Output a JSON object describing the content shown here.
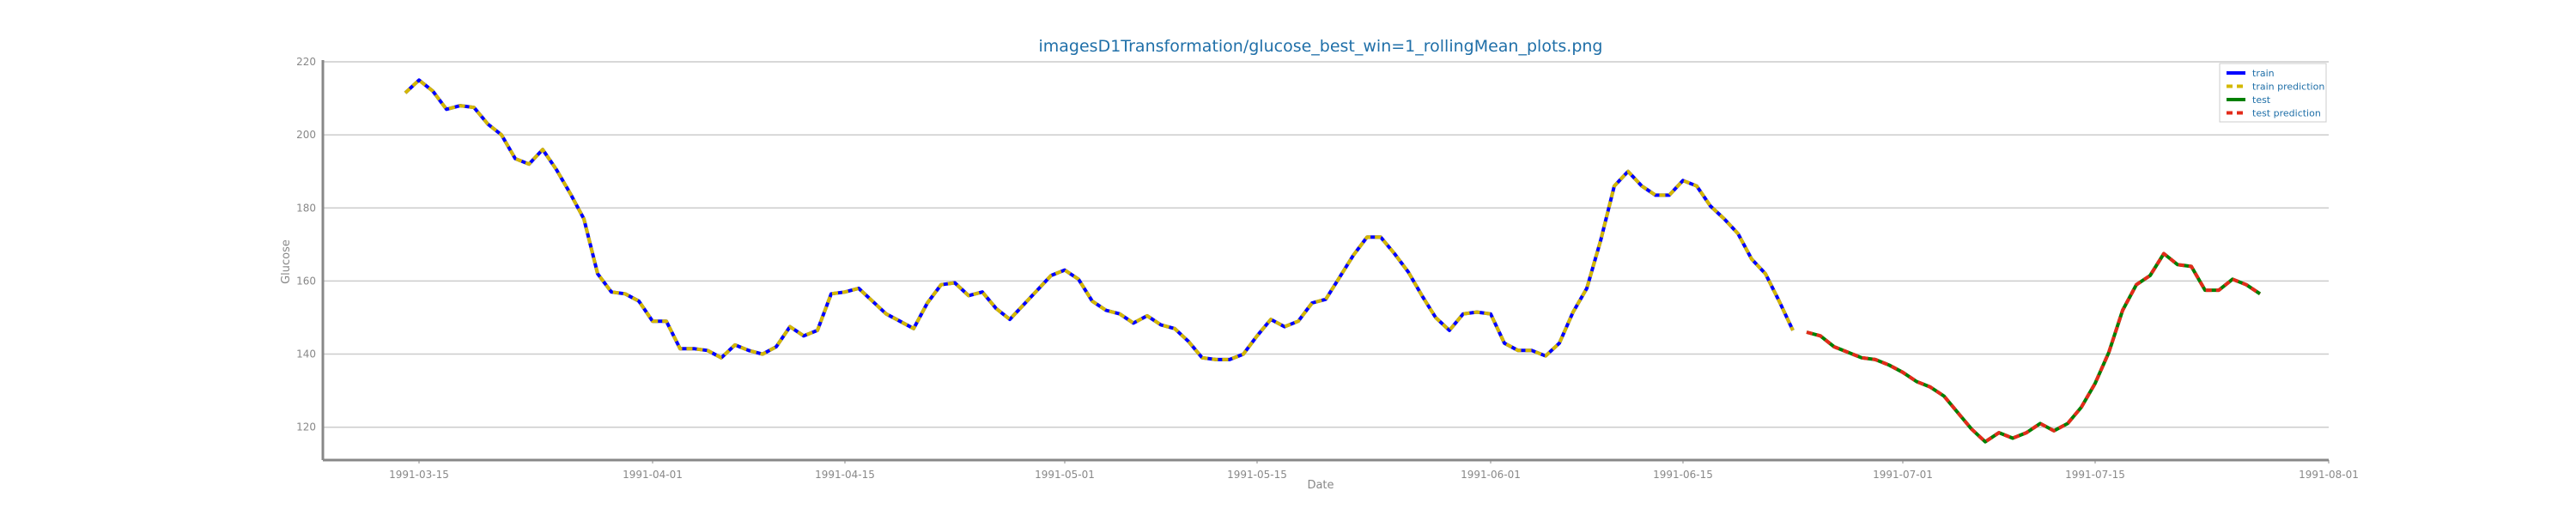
{
  "chart_data": {
    "type": "line",
    "title": "imagesD1Transformation/glucose_best_win=1_rollingMean_plots.png",
    "xlabel": "Date",
    "ylabel": "Glucose",
    "xlim": [
      "1991-03-08",
      "1991-08-01"
    ],
    "ylim": [
      111,
      220
    ],
    "x_ticks": [
      "1991-03-15",
      "1991-04-01",
      "1991-04-15",
      "1991-05-01",
      "1991-05-15",
      "1991-06-01",
      "1991-06-15",
      "1991-07-01",
      "1991-07-15",
      "1991-08-01"
    ],
    "y_ticks": [
      120,
      140,
      160,
      180,
      200,
      220
    ],
    "grid": "horizontal",
    "legend_position": "top-right",
    "series": [
      {
        "name": "train",
        "color": "#0000ff",
        "style": "solid",
        "x_start": "1991-03-14",
        "step_days": 1,
        "values": [
          211.5,
          215.0,
          212.0,
          207.0,
          208.0,
          207.5,
          203.0,
          200.0,
          193.5,
          192.0,
          196.0,
          190.5,
          184.0,
          177.0,
          162.0,
          157.0,
          156.5,
          154.5,
          149.0,
          149.0,
          141.5,
          141.5,
          141.0,
          139.0,
          142.5,
          141.0,
          140.0,
          142.0,
          147.5,
          145.0,
          146.5,
          156.5,
          157.0,
          158.0,
          154.5,
          151.0,
          149.0,
          147.0,
          154.0,
          159.0,
          159.5,
          156.0,
          157.0,
          152.5,
          149.5,
          153.5,
          157.5,
          161.5,
          163.0,
          160.5,
          154.5,
          152.0,
          151.0,
          148.5,
          150.5,
          148.0,
          147.0,
          143.5,
          139.0,
          138.5,
          138.5,
          140.0,
          145.0,
          149.5,
          147.5,
          149.0,
          154.0,
          155.0,
          161.0,
          167.0,
          172.0,
          172.0,
          167.5,
          162.5,
          156.0,
          150.0,
          146.5,
          151.0,
          151.5,
          151.0,
          143.0,
          141.0,
          141.0,
          139.5,
          143.0,
          151.5,
          158.0,
          171.0,
          186.0,
          190.0,
          186.0,
          183.5,
          183.5,
          187.5,
          186.0,
          180.5,
          177.0,
          173.0,
          166.0,
          162.0,
          154.5,
          146.5
        ]
      },
      {
        "name": "train prediction",
        "color": "#d4b800",
        "style": "dashed",
        "x_start": "1991-03-14",
        "step_days": 1,
        "values": [
          211.5,
          215.0,
          212.0,
          207.0,
          208.0,
          207.5,
          203.0,
          200.0,
          193.5,
          192.0,
          196.0,
          190.5,
          184.0,
          177.0,
          162.0,
          157.0,
          156.5,
          154.5,
          149.0,
          149.0,
          141.5,
          141.5,
          141.0,
          139.0,
          142.5,
          141.0,
          140.0,
          142.0,
          147.5,
          145.0,
          146.5,
          156.5,
          157.0,
          158.0,
          154.5,
          151.0,
          149.0,
          147.0,
          154.0,
          159.0,
          159.5,
          156.0,
          157.0,
          152.5,
          149.5,
          153.5,
          157.5,
          161.5,
          163.0,
          160.5,
          154.5,
          152.0,
          151.0,
          148.5,
          150.5,
          148.0,
          147.0,
          143.5,
          139.0,
          138.5,
          138.5,
          140.0,
          145.0,
          149.5,
          147.5,
          149.0,
          154.0,
          155.0,
          161.0,
          167.0,
          172.0,
          172.0,
          167.5,
          162.5,
          156.0,
          150.0,
          146.5,
          151.0,
          151.5,
          151.0,
          143.0,
          141.0,
          141.0,
          139.5,
          143.0,
          151.5,
          158.0,
          171.0,
          186.0,
          190.0,
          186.0,
          183.5,
          183.5,
          187.5,
          186.0,
          180.5,
          177.0,
          173.0,
          166.0,
          162.0,
          154.5,
          146.5
        ]
      },
      {
        "name": "test",
        "color": "#008000",
        "style": "solid",
        "x_start": "1991-06-24",
        "step_days": 1,
        "values": [
          146.0,
          145.0,
          142.0,
          140.5,
          139.0,
          138.5,
          137.0,
          135.0,
          132.5,
          131.0,
          128.5,
          124.0,
          119.5,
          116.0,
          118.5,
          117.0,
          118.5,
          121.0,
          119.0,
          121.0,
          125.5,
          132.0,
          140.5,
          152.0,
          159.0,
          161.5,
          167.5,
          164.5,
          164.0,
          157.5,
          157.5,
          160.5,
          159.0,
          156.5
        ]
      },
      {
        "name": "test prediction",
        "color": "#e32b1a",
        "style": "dashed",
        "x_start": "1991-06-24",
        "step_days": 1,
        "values": [
          146.0,
          145.0,
          142.0,
          140.5,
          139.0,
          138.5,
          137.0,
          135.0,
          132.5,
          131.0,
          128.5,
          124.0,
          119.5,
          116.0,
          118.5,
          117.0,
          118.5,
          121.0,
          119.0,
          121.0,
          125.5,
          132.0,
          140.5,
          152.0,
          159.0,
          161.5,
          167.5,
          164.5,
          164.0,
          157.5,
          157.5,
          160.5,
          159.0,
          156.5
        ]
      }
    ]
  }
}
